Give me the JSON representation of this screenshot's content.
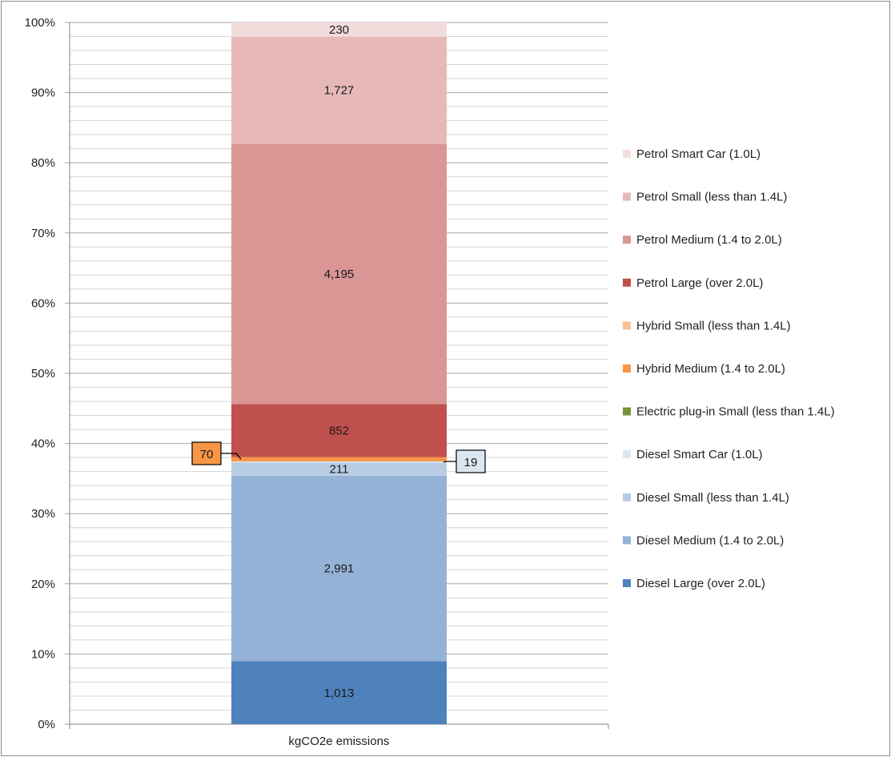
{
  "chart_data": {
    "type": "bar",
    "stacked": "percent",
    "categories": [
      "kgCO2e emissions"
    ],
    "y_ticks": [
      "0%",
      "10%",
      "20%",
      "30%",
      "40%",
      "50%",
      "60%",
      "70%",
      "80%",
      "90%",
      "100%"
    ],
    "ylim": [
      0,
      100
    ],
    "grid": true,
    "legend_position": "right",
    "series": [
      {
        "name": "Diesel Large (over 2.0L)",
        "values": [
          1013
        ],
        "label": "1,013",
        "color": "#4f81bd"
      },
      {
        "name": "Diesel Medium (1.4 to 2.0L)",
        "values": [
          2991
        ],
        "label": "2,991",
        "color": "#95b3d7"
      },
      {
        "name": "Diesel Small (less than 1.4L)",
        "values": [
          211
        ],
        "label": "211",
        "color": "#b8cce4"
      },
      {
        "name": "Diesel Smart Car (1.0L)",
        "values": [
          19
        ],
        "label": "19",
        "color": "#dce6f1"
      },
      {
        "name": "Electric plug-in Small (less than 1.4L)",
        "values": [
          0
        ],
        "label": "",
        "color": "#77933c"
      },
      {
        "name": "Hybrid Medium (1.4 to 2.0L)",
        "values": [
          70
        ],
        "label": "70",
        "color": "#f79646"
      },
      {
        "name": "Hybrid Small (less than 1.4L)",
        "values": [
          0
        ],
        "label": "",
        "color": "#fac090"
      },
      {
        "name": "Petrol Large (over 2.0L)",
        "values": [
          852
        ],
        "label": "852",
        "color": "#c0504d"
      },
      {
        "name": "Petrol Medium (1.4 to 2.0L)",
        "values": [
          4195
        ],
        "label": "4,195",
        "color": "#d99694"
      },
      {
        "name": "Petrol Small (less than 1.4L)",
        "values": [
          1727
        ],
        "label": "1,727",
        "color": "#e6b9b8"
      },
      {
        "name": "Petrol Smart Car (1.0L)",
        "values": [
          230
        ],
        "label": "230",
        "color": "#f2dcdb"
      }
    ],
    "callouts": [
      {
        "series": "Hybrid Medium (1.4 to 2.0L)",
        "side": "left"
      },
      {
        "series": "Diesel Smart Car (1.0L)",
        "side": "right"
      }
    ]
  }
}
